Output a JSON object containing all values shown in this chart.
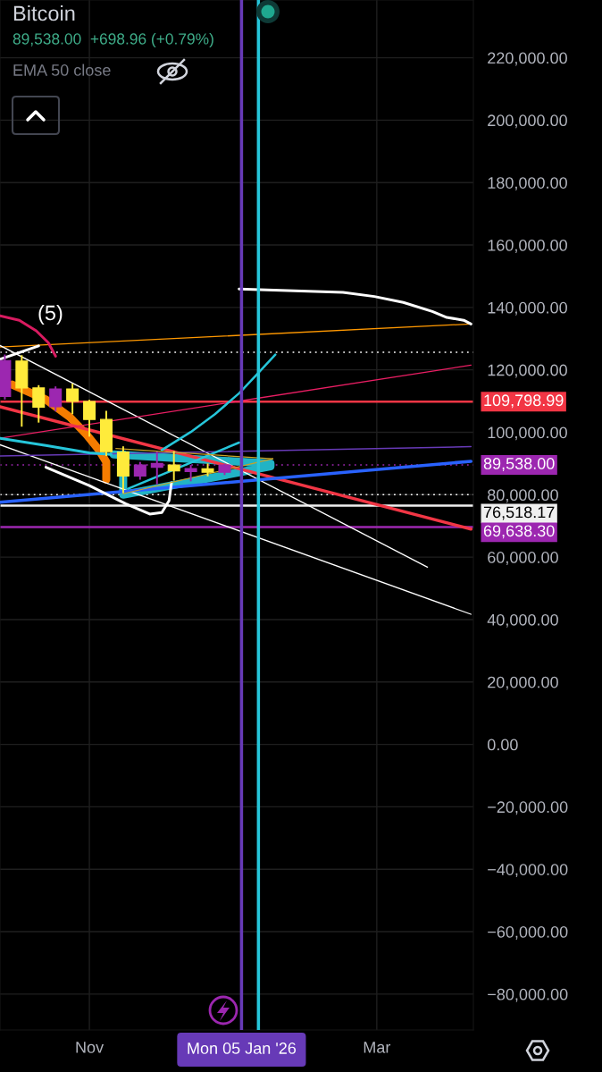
{
  "chart_data": {
    "type": "candlestick",
    "title": "Bitcoin",
    "subtitle": "89,538.00  +698.96 (+0.79%)",
    "annotations": [
      "EMA 50 close",
      "(5)"
    ],
    "x": [
      "2025-09-29",
      "2025-10-06",
      "2025-10-13",
      "2025-10-20",
      "2025-10-27",
      "2025-11-03",
      "2025-11-10",
      "2025-11-17",
      "2025-11-24",
      "2025-12-01",
      "2025-12-08",
      "2025-12-15",
      "2025-12-22",
      "2025-12-29"
    ],
    "ohlc": [
      [
        111500,
        124900,
        110500,
        123000
      ],
      [
        122800,
        124700,
        101800,
        114200
      ],
      [
        114200,
        115100,
        103100,
        108000
      ],
      [
        108200,
        114700,
        106700,
        113900
      ],
      [
        113900,
        115600,
        105800,
        109900
      ],
      [
        109900,
        110400,
        98600,
        104100
      ],
      [
        104100,
        106900,
        92400,
        93800
      ],
      [
        93700,
        95500,
        80500,
        86000
      ],
      [
        86000,
        90500,
        84800,
        89500
      ],
      [
        88800,
        93800,
        83300,
        90000
      ],
      [
        89500,
        94000,
        84500,
        87600
      ],
      [
        87400,
        89500,
        84300,
        88400
      ],
      [
        88300,
        90000,
        85900,
        87200
      ],
      [
        87200,
        89900,
        86300,
        89500
      ]
    ],
    "colors": [
      "#9c27b0",
      "#ffeb3b",
      "#ffeb3b",
      "#9c27b0",
      "#ffeb3b",
      "#ffeb3b",
      "#ffeb3b",
      "#ffeb3b",
      "#9c27b0",
      "#9c27b0",
      "#ffeb3b",
      "#9c27b0",
      "#ffeb3b",
      "#9c27b0"
    ],
    "series": [
      {
        "type": "line",
        "color": "#ff9800",
        "x": [
          "2025-09-27",
          "2026-04-10"
        ],
        "values": [
          127300,
          134700
        ]
      },
      {
        "type": "line",
        "color": "#ffffff",
        "x": [
          "2026-01-04",
          "2026-02-16",
          "2026-03-01",
          "2026-03-13",
          "2026-03-25",
          "2026-03-31",
          "2026-04-07",
          "2026-04-10"
        ],
        "values": [
          145900,
          144800,
          143500,
          141600,
          138700,
          136800,
          135900,
          134700
        ]
      },
      {
        "type": "line",
        "color": "#d81b60",
        "x": [
          "2025-09-27",
          "2025-10-05",
          "2025-10-12",
          "2025-10-17",
          "2025-10-20"
        ],
        "values": [
          137300,
          135900,
          132500,
          128700,
          124400
        ]
      },
      {
        "type": "line",
        "color": "#ffffff",
        "x": [
          "2025-09-27",
          "2025-10-13"
        ],
        "values": [
          123400,
          127700
        ]
      },
      {
        "type": "line",
        "color": "#ffffff",
        "x": [
          "2025-09-27",
          "2026-03-23"
        ],
        "values": [
          127800,
          56800
        ]
      },
      {
        "type": "line",
        "color": "#ffffff",
        "x": [
          "2025-09-27",
          "2026-04-10"
        ],
        "values": [
          96000,
          41700
        ]
      },
      {
        "type": "line",
        "color": "#f23645",
        "x": [
          "2025-09-27",
          "2026-04-10"
        ],
        "values": [
          108200,
          69000
        ]
      },
      {
        "type": "line",
        "color": "#e91e63",
        "x": [
          "2025-09-27",
          "2026-04-10"
        ],
        "values": [
          98100,
          121500
        ]
      },
      {
        "type": "line",
        "color": "#673ab7",
        "x": [
          "2025-09-27",
          "2026-04-10"
        ],
        "values": [
          92400,
          95400
        ]
      },
      {
        "type": "line",
        "color": "#2962ff",
        "x": [
          "2025-09-27",
          "2026-04-10"
        ],
        "values": [
          77600,
          90700
        ]
      },
      {
        "type": "line",
        "color": "#26c6da",
        "x": [
          "2025-09-27",
          "2025-10-16",
          "2025-11-03",
          "2025-11-12"
        ],
        "values": [
          98100,
          95800,
          93400,
          92900
        ]
      },
      {
        "type": "line",
        "color": "#26c6da",
        "x": [
          "2025-12-03",
          "2025-12-15",
          "2025-12-25",
          "2026-01-04",
          "2026-01-11",
          "2026-01-19"
        ],
        "values": [
          94300,
          100100,
          105800,
          112500,
          118200,
          124900
        ]
      },
      {
        "type": "line",
        "color": "#26c6da",
        "x": [
          "2025-11-19",
          "2026-01-04"
        ],
        "values": [
          81900,
          96700
        ]
      },
      {
        "type": "line",
        "color": "#22b3c5",
        "x": [
          "2025-11-13",
          "2026-01-17",
          "2026-01-17",
          "2025-11-17",
          "2025-11-17"
        ],
        "values": [
          92900,
          90000,
          89100,
          80000,
          92900
        ]
      },
      {
        "type": "line",
        "color": "#f57c00",
        "x": [
          "2025-10-02",
          "2025-10-16",
          "2025-10-26",
          "2025-11-02",
          "2025-11-07",
          "2025-11-10",
          "2025-11-10"
        ],
        "values": [
          115300,
          110500,
          104800,
          99100,
          94300,
          90500,
          84800
        ]
      },
      {
        "type": "line",
        "color": "#ffffff",
        "x": [
          "2025-10-16",
          "2025-11-03",
          "2025-11-18",
          "2025-11-28",
          "2025-12-03",
          "2025-12-06",
          "2025-12-07"
        ],
        "values": [
          88800,
          82900,
          77100,
          73800,
          74300,
          78100,
          83800
        ]
      },
      {
        "type": "line",
        "color": "#c9a227",
        "x": [
          "2025-11-14",
          "2026-01-18"
        ],
        "values": [
          94800,
          91500
        ]
      },
      {
        "type": "line",
        "color": "#c9a227",
        "x": [
          "2025-11-17",
          "2026-01-18"
        ],
        "values": [
          80300,
          91500
        ]
      }
    ],
    "xlim": [
      "2025-09-27",
      "2026-04-11"
    ],
    "xticks": [
      {
        "value": "2025-11-03",
        "label": "Nov"
      },
      {
        "value": "2026-03-02",
        "label": "Mar"
      }
    ],
    "ylim": [
      -91500,
      238500
    ],
    "yticks": [
      {
        "value": -80000,
        "label": "−80,000.00"
      },
      {
        "value": -60000,
        "label": "−60,000.00"
      },
      {
        "value": -40000,
        "label": "−40,000.00"
      },
      {
        "value": -20000,
        "label": "−20,000.00"
      },
      {
        "value": 0,
        "label": "0.00"
      },
      {
        "value": 20000,
        "label": "20,000.00"
      },
      {
        "value": 40000,
        "label": "40,000.00"
      },
      {
        "value": 60000,
        "label": "60,000.00"
      },
      {
        "value": 80000,
        "label": "80,000.00"
      },
      {
        "value": 100000,
        "label": "100,000.00"
      },
      {
        "value": 120000,
        "label": "120,000.00"
      },
      {
        "value": 140000,
        "label": "140,000.00"
      },
      {
        "value": 160000,
        "label": "160,000.00"
      },
      {
        "value": 180000,
        "label": "180,000.00"
      },
      {
        "value": 200000,
        "label": "200,000.00"
      },
      {
        "value": 220000,
        "label": "220,000.00"
      }
    ],
    "ref_lines": [
      {
        "axis": "y",
        "value": 125600,
        "color": "#ffffff",
        "line_style": "dotted"
      },
      {
        "axis": "y",
        "value": 109798.99,
        "label": "109,798.99",
        "color": "#f23645"
      },
      {
        "axis": "y",
        "value": 89538,
        "label": "89,538.00",
        "color": "#9c27b0",
        "line_style": "dotted"
      },
      {
        "axis": "y",
        "value": 80000,
        "color": "#ffffff",
        "line_style": "dotted"
      },
      {
        "axis": "y",
        "value": 76518.17,
        "label": "76,518.17",
        "color": "#f0f0f0"
      },
      {
        "axis": "y",
        "value": 69638.3,
        "label": "69,638.30",
        "color": "#9c27b0"
      },
      {
        "axis": "x",
        "value": "2026-01-05",
        "label": "Mon 05 Jan '26",
        "color": "#673ab7"
      },
      {
        "axis": "x",
        "value": "2026-01-12",
        "color": "#26c6da"
      }
    ],
    "grid": true
  }
}
